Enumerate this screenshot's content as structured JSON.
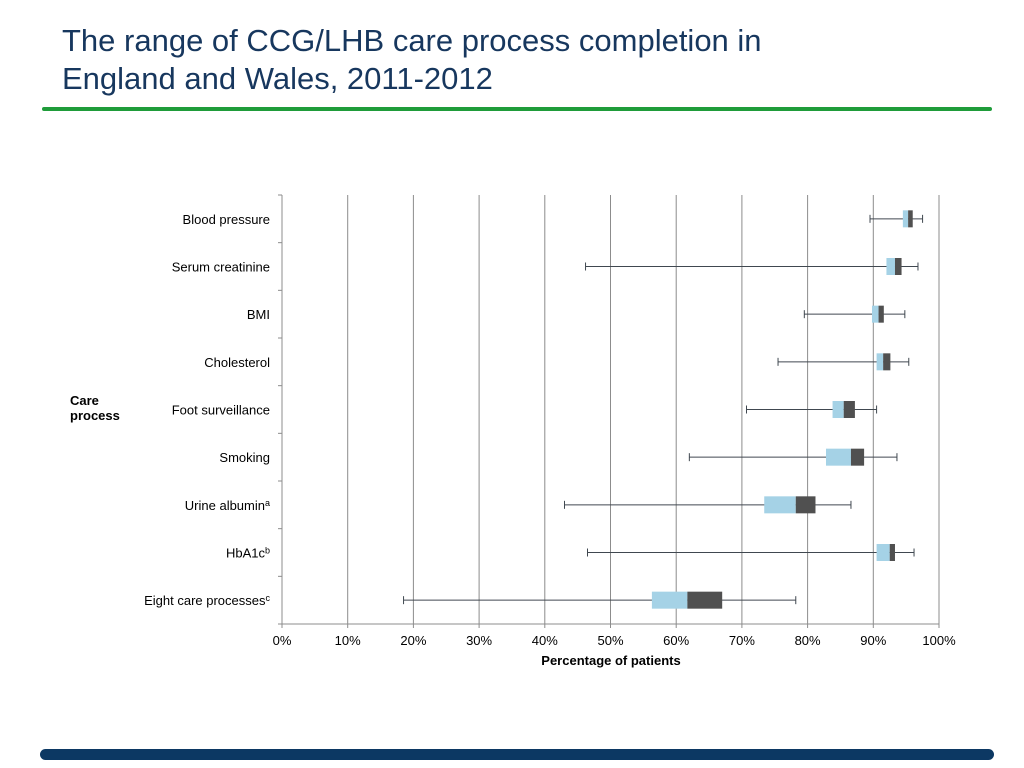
{
  "slide": {
    "title_line1": "The range of CCG/LHB care process completion in",
    "title_line2": "England and Wales, 2011-2012",
    "accent_color": "#1f9c3a",
    "footer_color": "#0c3863",
    "title_color": "#17375e"
  },
  "chart_data": {
    "type": "box",
    "orientation": "horizontal",
    "title": "",
    "xlabel": "Percentage of patients",
    "ylabel": "Care process",
    "xlim": [
      0,
      100
    ],
    "x_ticks": [
      "0%",
      "10%",
      "20%",
      "30%",
      "40%",
      "50%",
      "60%",
      "70%",
      "80%",
      "90%",
      "100%"
    ],
    "grid": "vertical",
    "colors": {
      "lower_box": "#a5d2e6",
      "upper_box": "#505050",
      "whisker": "#404850",
      "grid": "#8c8c8c"
    },
    "categories": [
      {
        "label": "Blood pressure",
        "sup": "",
        "min": 89.5,
        "q1": 94.5,
        "median": 95.3,
        "q3": 96.0,
        "max": 97.5
      },
      {
        "label": "Serum creatinine",
        "sup": "",
        "min": 46.2,
        "q1": 92.0,
        "median": 93.3,
        "q3": 94.3,
        "max": 96.8
      },
      {
        "label": "BMI",
        "sup": "",
        "min": 79.5,
        "q1": 89.8,
        "median": 90.8,
        "q3": 91.6,
        "max": 94.8
      },
      {
        "label": "Cholesterol",
        "sup": "",
        "min": 75.5,
        "q1": 90.5,
        "median": 91.5,
        "q3": 92.6,
        "max": 95.4
      },
      {
        "label": "Foot surveillance",
        "sup": "",
        "min": 70.7,
        "q1": 83.8,
        "median": 85.5,
        "q3": 87.2,
        "max": 90.5
      },
      {
        "label": "Smoking",
        "sup": "",
        "min": 62.0,
        "q1": 82.8,
        "median": 86.6,
        "q3": 88.6,
        "max": 93.6
      },
      {
        "label": "Urine albumin",
        "sup": "a",
        "min": 43.0,
        "q1": 73.4,
        "median": 78.2,
        "q3": 81.2,
        "max": 86.6
      },
      {
        "label": "HbA1c",
        "sup": "b",
        "min": 46.5,
        "q1": 90.5,
        "median": 92.5,
        "q3": 93.3,
        "max": 96.2
      },
      {
        "label": "Eight care processes",
        "sup": "c",
        "min": 18.5,
        "q1": 56.3,
        "median": 61.7,
        "q3": 67.0,
        "max": 78.2
      }
    ]
  }
}
